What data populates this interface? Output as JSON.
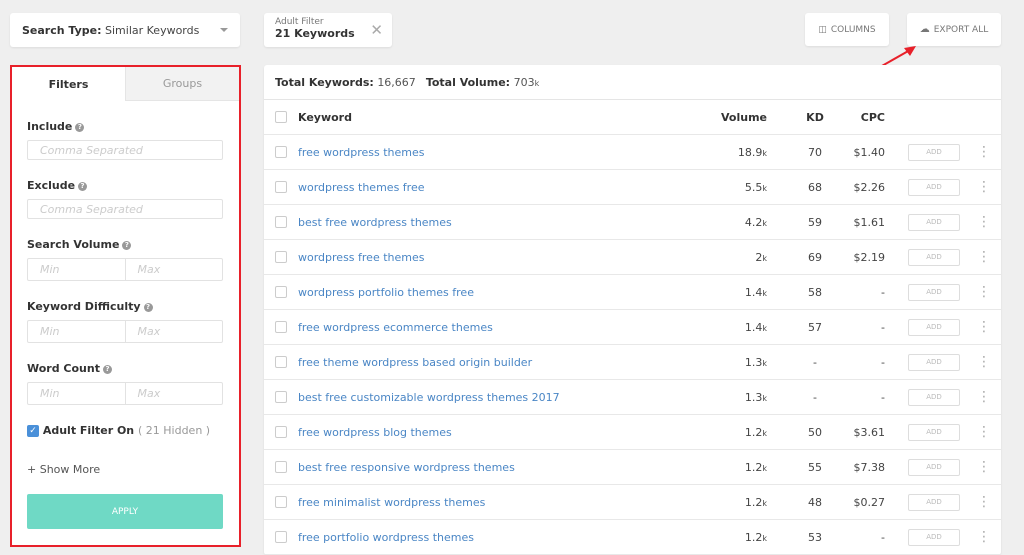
{
  "search_type": {
    "label": "Search Type:",
    "value": "Similar Keywords"
  },
  "adult_chip": {
    "label": "Adult Filter",
    "value": "21 Keywords"
  },
  "toolbar": {
    "columns": "COLUMNS",
    "export": "EXPORT ALL"
  },
  "panel": {
    "tabs": [
      "Filters",
      "Groups"
    ],
    "include": {
      "label": "Include",
      "placeholder": "Comma Separated"
    },
    "exclude": {
      "label": "Exclude",
      "placeholder": "Comma Separated"
    },
    "volume": {
      "label": "Search Volume",
      "min": "Min",
      "max": "Max"
    },
    "kd": {
      "label": "Keyword Difficulty",
      "min": "Min",
      "max": "Max"
    },
    "words": {
      "label": "Word Count",
      "min": "Min",
      "max": "Max"
    },
    "adult": {
      "label": "Adult Filter On",
      "hidden": "( 21 Hidden )",
      "checked": true
    },
    "show_more": "+ Show More",
    "apply": "APPLY"
  },
  "totals": {
    "kw_label": "Total Keywords:",
    "kw": "16,667",
    "vol_label": "Total Volume:",
    "vol": "703",
    "vol_unit": "k"
  },
  "columns": {
    "keyword": "Keyword",
    "volume": "Volume",
    "kd": "KD",
    "cpc": "CPC"
  },
  "add_label": "ADD",
  "rows": [
    {
      "kw": "free wordpress themes",
      "vol": "18.9",
      "kd": "70",
      "cpc": "$1.40"
    },
    {
      "kw": "wordpress themes free",
      "vol": "5.5",
      "kd": "68",
      "cpc": "$2.26"
    },
    {
      "kw": "best free wordpress themes",
      "vol": "4.2",
      "kd": "59",
      "cpc": "$1.61"
    },
    {
      "kw": "wordpress free themes",
      "vol": "2",
      "kd": "69",
      "cpc": "$2.19"
    },
    {
      "kw": "wordpress portfolio themes free",
      "vol": "1.4",
      "kd": "58",
      "cpc": "-"
    },
    {
      "kw": "free wordpress ecommerce themes",
      "vol": "1.4",
      "kd": "57",
      "cpc": "-"
    },
    {
      "kw": "free theme wordpress based origin builder",
      "vol": "1.3",
      "kd": "-",
      "cpc": "-"
    },
    {
      "kw": "best free customizable wordpress themes 2017",
      "vol": "1.3",
      "kd": "-",
      "cpc": "-"
    },
    {
      "kw": "free wordpress blog themes",
      "vol": "1.2",
      "kd": "50",
      "cpc": "$3.61"
    },
    {
      "kw": "best free responsive wordpress themes",
      "vol": "1.2",
      "kd": "55",
      "cpc": "$7.38"
    },
    {
      "kw": "free minimalist wordpress themes",
      "vol": "1.2",
      "kd": "48",
      "cpc": "$0.27"
    },
    {
      "kw": "free portfolio wordpress themes",
      "vol": "1.2",
      "kd": "53",
      "cpc": "-"
    }
  ],
  "vol_unit": "k"
}
